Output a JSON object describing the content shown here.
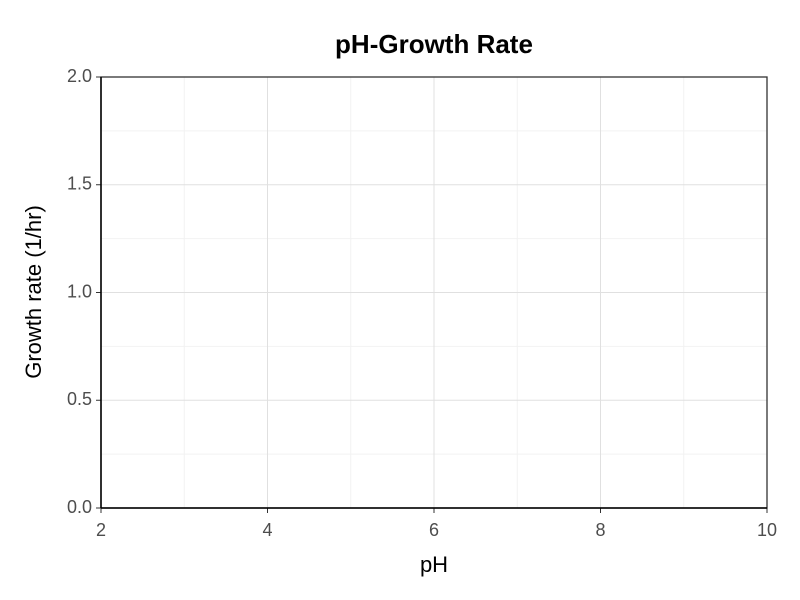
{
  "chart_data": {
    "type": "scatter",
    "title": "pH-Growth Rate",
    "x_label": "pH",
    "y_label": "Growth rate (1/hr)",
    "xlim": [
      2,
      10
    ],
    "xticks": [
      2,
      4,
      6,
      8,
      10
    ],
    "ylim": [
      0,
      2
    ],
    "yticks": [
      {
        "value": 0,
        "label": "0.0"
      },
      0.5,
      {
        "value": 1,
        "label": "1.0"
      },
      1.5,
      {
        "value": 2,
        "label": "2.0"
      }
    ],
    "grid": true
  }
}
